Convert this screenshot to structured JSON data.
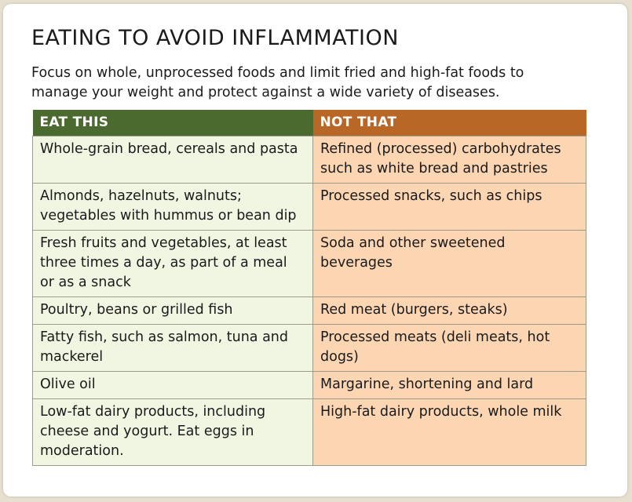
{
  "title": "EATING TO AVOID INFLAMMATION",
  "subtitle": "Focus on whole, unprocessed foods and limit fried and high-fat foods to manage your weight and protect against a wide variety of diseases.",
  "table": {
    "headers": {
      "eat": "EAT THIS",
      "not": "NOT THAT"
    },
    "rows": [
      {
        "eat": "Whole-grain bread, cereals and pasta",
        "not": "Refined (processed) carbohydrates such as white bread and pastries"
      },
      {
        "eat": "Almonds, hazelnuts, walnuts; vegetables with hummus or bean dip",
        "not": "Processed snacks, such as chips"
      },
      {
        "eat": "Fresh fruits and vegetables, at least three times a day, as part of a meal or as a snack",
        "not": "Soda and other sweetened beverages"
      },
      {
        "eat": "Poultry, beans or grilled fish",
        "not": "Red meat (burgers, steaks)"
      },
      {
        "eat": "Fatty fish, such as salmon, tuna and mackerel",
        "not": "Processed meats (deli meats, hot dogs)"
      },
      {
        "eat": "Olive oil",
        "not": "Margarine, shortening and lard"
      },
      {
        "eat": "Low-fat dairy products, including cheese and yogurt. Eat eggs in moderation.",
        "not": "High-fat dairy products, whole milk"
      }
    ]
  },
  "colors": {
    "eat_header": "#4a6a30",
    "not_header": "#b96727",
    "eat_cell": "#f1f6e3",
    "not_cell": "#fcd5b2"
  }
}
